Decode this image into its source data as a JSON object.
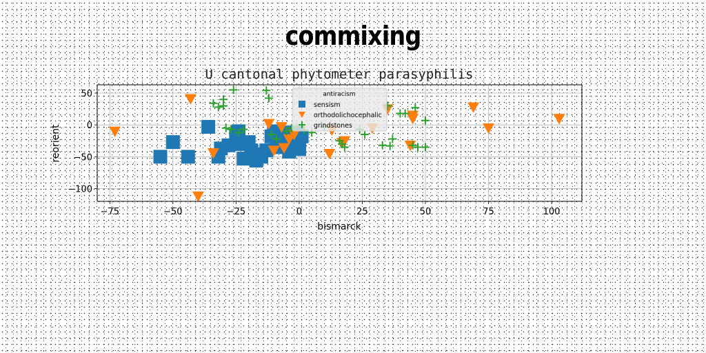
{
  "super_title": "commixing",
  "chart_data": {
    "type": "scatter",
    "title": "U cantonal phytometer parasyphilis",
    "xlabel": "bismarck",
    "ylabel": "reorient",
    "xlim": [
      -80,
      112
    ],
    "ylim": [
      -120,
      63
    ],
    "xticks": [
      -75,
      -50,
      -25,
      0,
      25,
      50,
      75,
      100
    ],
    "yticks": [
      50,
      0,
      -50,
      -100
    ],
    "xtick_labels": [
      "−75",
      "−50",
      "−25",
      "0",
      "25",
      "50",
      "75",
      "100"
    ],
    "ytick_labels": [
      "50",
      "0",
      "−50",
      "−100"
    ],
    "grid": true,
    "legend": {
      "title": "antiracism",
      "placement": "upper center"
    },
    "series": [
      {
        "name": "sensism",
        "marker": "square",
        "color": "#1f77b4",
        "points": [
          [
            -55,
            -50
          ],
          [
            -50,
            -27
          ],
          [
            -44,
            -50
          ],
          [
            -36,
            -3
          ],
          [
            -32,
            -50
          ],
          [
            -31,
            -37
          ],
          [
            -28,
            -32
          ],
          [
            -25,
            -17
          ],
          [
            -24,
            -10
          ],
          [
            -23,
            -30
          ],
          [
            -22,
            -53
          ],
          [
            -20,
            -27
          ],
          [
            -19,
            -40
          ],
          [
            -18,
            -46
          ],
          [
            -17,
            -56
          ],
          [
            -15,
            -50
          ],
          [
            -13,
            -40
          ],
          [
            -11,
            -18
          ],
          [
            -10,
            -10
          ],
          [
            -9,
            -26
          ],
          [
            -8,
            -35
          ],
          [
            -7,
            -22
          ],
          [
            -6,
            -30
          ],
          [
            -5,
            -12
          ],
          [
            -4,
            -42
          ],
          [
            -3,
            -20
          ],
          [
            -2,
            -28
          ],
          [
            -1,
            -12
          ],
          [
            0,
            -32
          ],
          [
            1,
            -18
          ],
          [
            0,
            -38
          ]
        ]
      },
      {
        "name": "orthodolichocephalic",
        "marker": "triangle-down",
        "color": "#ff7f0e",
        "points": [
          [
            -73,
            -10
          ],
          [
            -43,
            41
          ],
          [
            -40,
            -112
          ],
          [
            -34,
            -44
          ],
          [
            -12,
            2
          ],
          [
            -10,
            -40
          ],
          [
            -7,
            -3
          ],
          [
            -6,
            -36
          ],
          [
            -4,
            -22
          ],
          [
            -2,
            -15
          ],
          [
            12,
            -45
          ],
          [
            13,
            -8
          ],
          [
            17,
            -28
          ],
          [
            18,
            -25
          ],
          [
            29,
            -5
          ],
          [
            35,
            25
          ],
          [
            44,
            -32
          ],
          [
            45,
            15
          ],
          [
            45,
            10
          ],
          [
            69,
            28
          ],
          [
            75,
            -5
          ],
          [
            103,
            10
          ]
        ]
      },
      {
        "name": "grindstones",
        "marker": "plus",
        "color": "#2ca02c",
        "points": [
          [
            -34,
            34
          ],
          [
            -32,
            28
          ],
          [
            -30,
            40
          ],
          [
            -30,
            30
          ],
          [
            -29,
            -5
          ],
          [
            -27,
            -7
          ],
          [
            -26,
            55
          ],
          [
            -24,
            -12
          ],
          [
            -22,
            -7
          ],
          [
            -13,
            54
          ],
          [
            -12,
            42
          ],
          [
            -11,
            -15
          ],
          [
            -9,
            -22
          ],
          [
            -5,
            -10
          ],
          [
            -3,
            -5
          ],
          [
            -1,
            -3
          ],
          [
            2,
            -8
          ],
          [
            5,
            -12
          ],
          [
            10,
            -3
          ],
          [
            16,
            -25
          ],
          [
            17,
            -30
          ],
          [
            18,
            -35
          ],
          [
            24,
            -7
          ],
          [
            26,
            -15
          ],
          [
            33,
            -32
          ],
          [
            35,
            30
          ],
          [
            36,
            -33
          ],
          [
            37,
            -22
          ],
          [
            40,
            18
          ],
          [
            42,
            18
          ],
          [
            45,
            -32
          ],
          [
            46,
            27
          ],
          [
            47,
            -35
          ],
          [
            50,
            7
          ],
          [
            50,
            -35
          ]
        ]
      }
    ]
  }
}
